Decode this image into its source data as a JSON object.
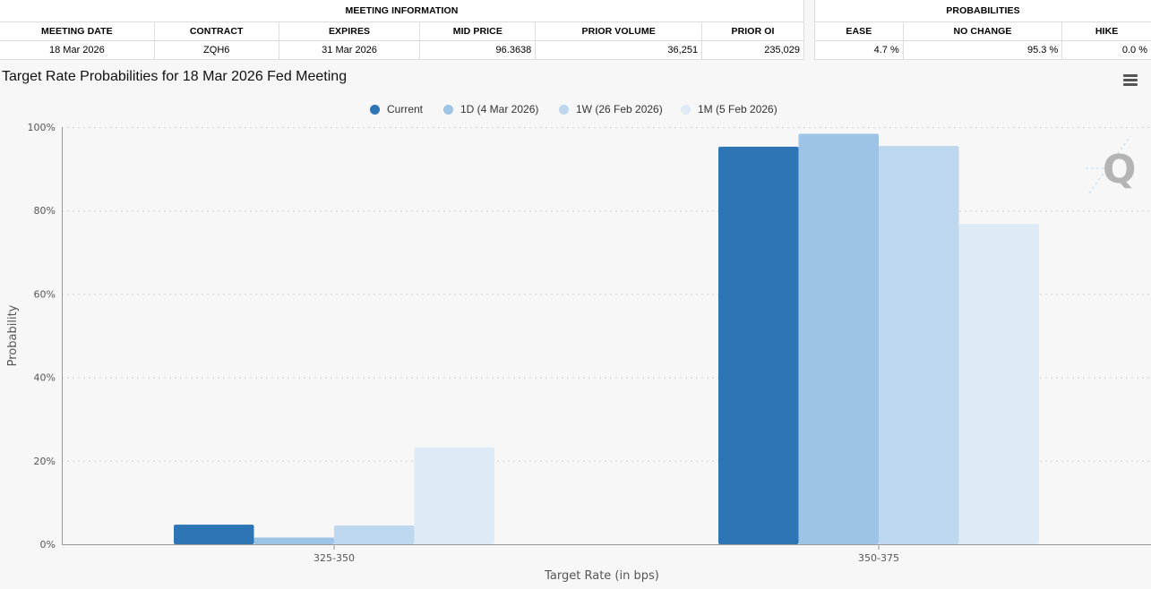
{
  "meeting_info": {
    "group_label": "MEETING INFORMATION",
    "headers": [
      "MEETING DATE",
      "CONTRACT",
      "EXPIRES",
      "MID PRICE",
      "PRIOR VOLUME",
      "PRIOR OI"
    ],
    "row": [
      "18 Mar 2026",
      "ZQH6",
      "31 Mar 2026",
      "96.3638",
      "36,251",
      "235,029"
    ]
  },
  "probabilities": {
    "group_label": "PROBABILITIES",
    "headers": [
      "EASE",
      "NO CHANGE",
      "HIKE"
    ],
    "row": [
      "4.7 %",
      "95.3 %",
      "0.0 %"
    ]
  },
  "chart_title": "Target Rate Probabilities for 18 Mar 2026 Fed Meeting",
  "colors": {
    "current": "#2e75b6",
    "one_day": "#9dc3e6",
    "one_week": "#bdd7ee",
    "one_month": "#deebf7",
    "gridline": "#d0d0d0",
    "axis": "#999999",
    "watermark": "#b4b4b4"
  },
  "icons": {
    "menu": "hamburger-icon",
    "watermark": "q-logo-icon"
  },
  "chart_data": {
    "type": "bar",
    "title": "Target Rate Probabilities for 18 Mar 2026 Fed Meeting",
    "xlabel": "Target Rate (in bps)",
    "ylabel": "Probability",
    "categories": [
      "325-350",
      "350-375"
    ],
    "series": [
      {
        "name": "Current",
        "values": [
          4.7,
          95.3
        ]
      },
      {
        "name": "1D (4 Mar 2026)",
        "values": [
          1.6,
          98.4
        ]
      },
      {
        "name": "1W (26 Feb 2026)",
        "values": [
          4.5,
          95.5
        ]
      },
      {
        "name": "1M (5 Feb 2026)",
        "values": [
          23.2,
          76.8
        ]
      }
    ],
    "ylim": [
      0,
      100
    ],
    "yticks": [
      "0%",
      "20%",
      "40%",
      "60%",
      "80%",
      "100%"
    ],
    "grid": true,
    "legend_position": "top-center"
  }
}
